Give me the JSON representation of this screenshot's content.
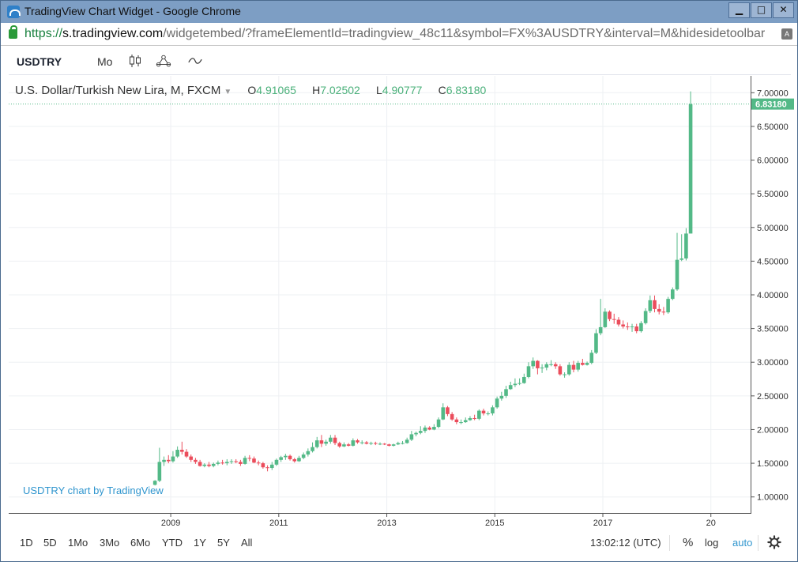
{
  "window": {
    "title": "TradingView Chart Widget - Google Chrome",
    "buttons": {
      "minimize": "▁",
      "maximize": "□",
      "close": "✕"
    }
  },
  "address": {
    "scheme": "https://",
    "host": "s.tradingview.com",
    "path": "/widgetembed/?frameElementId=tradingview_48c11&symbol=FX%3AUSDTRY&interval=M&hidesidetoolbar"
  },
  "toolbar": {
    "symbol": "USDTRY",
    "interval": "Mo"
  },
  "legend": {
    "name": "U.S. Dollar/Turkish New Lira, M, FXCM",
    "o_label": "O",
    "o": "4.91065",
    "h_label": "H",
    "h": "7.02502",
    "l_label": "L",
    "l": "4.90777",
    "c_label": "C",
    "c": "6.83180"
  },
  "watermark": "USDTRY chart by TradingView",
  "bottom": {
    "ranges": [
      "1D",
      "5D",
      "1Mo",
      "3Mo",
      "6Mo",
      "YTD",
      "1Y",
      "5Y",
      "All"
    ],
    "clock": "13:02:12 (UTC)",
    "percent": "%",
    "log": "log",
    "auto": "auto"
  },
  "colors": {
    "up": "#53b987",
    "down": "#eb4d5c",
    "accent": "#2f95ce",
    "last_price_bg": "#53b987"
  },
  "chart_data": {
    "type": "candlestick",
    "y_ticks": [
      "1.00000",
      "1.50000",
      "2.00000",
      "2.50000",
      "3.00000",
      "3.50000",
      "4.00000",
      "4.50000",
      "5.00000",
      "5.50000",
      "6.00000",
      "6.50000",
      "7.00000"
    ],
    "x_ticks": [
      "2009",
      "2011",
      "2013",
      "2015",
      "2017",
      "20"
    ],
    "last_price": "6.83180",
    "ylim": [
      0.75,
      7.25
    ],
    "x_range": [
      "2006-01",
      "2019-10"
    ],
    "x": [
      "2008-09",
      "2008-10",
      "2008-11",
      "2008-12",
      "2009-01",
      "2009-02",
      "2009-03",
      "2009-04",
      "2009-05",
      "2009-06",
      "2009-07",
      "2009-08",
      "2009-09",
      "2009-10",
      "2009-11",
      "2009-12",
      "2010-01",
      "2010-02",
      "2010-03",
      "2010-04",
      "2010-05",
      "2010-06",
      "2010-07",
      "2010-08",
      "2010-09",
      "2010-10",
      "2010-11",
      "2010-12",
      "2011-01",
      "2011-02",
      "2011-03",
      "2011-04",
      "2011-05",
      "2011-06",
      "2011-07",
      "2011-08",
      "2011-09",
      "2011-10",
      "2011-11",
      "2011-12",
      "2012-01",
      "2012-02",
      "2012-03",
      "2012-04",
      "2012-05",
      "2012-06",
      "2012-07",
      "2012-08",
      "2012-09",
      "2012-10",
      "2012-11",
      "2012-12",
      "2013-01",
      "2013-02",
      "2013-03",
      "2013-04",
      "2013-05",
      "2013-06",
      "2013-07",
      "2013-08",
      "2013-09",
      "2013-10",
      "2013-11",
      "2013-12",
      "2014-01",
      "2014-02",
      "2014-03",
      "2014-04",
      "2014-05",
      "2014-06",
      "2014-07",
      "2014-08",
      "2014-09",
      "2014-10",
      "2014-11",
      "2014-12",
      "2015-01",
      "2015-02",
      "2015-03",
      "2015-04",
      "2015-05",
      "2015-06",
      "2015-07",
      "2015-08",
      "2015-09",
      "2015-10",
      "2015-11",
      "2015-12",
      "2016-01",
      "2016-02",
      "2016-03",
      "2016-04",
      "2016-05",
      "2016-06",
      "2016-07",
      "2016-08",
      "2016-09",
      "2016-10",
      "2016-11",
      "2016-12",
      "2017-01",
      "2017-02",
      "2017-03",
      "2017-04",
      "2017-05",
      "2017-06",
      "2017-07",
      "2017-08",
      "2017-09",
      "2017-10",
      "2017-11",
      "2017-12",
      "2018-01",
      "2018-02",
      "2018-03",
      "2018-04",
      "2018-05",
      "2018-06",
      "2018-07",
      "2018-08"
    ],
    "open": [
      1.18,
      1.24,
      1.52,
      1.55,
      1.53,
      1.6,
      1.7,
      1.67,
      1.6,
      1.55,
      1.52,
      1.46,
      1.48,
      1.46,
      1.49,
      1.51,
      1.5,
      1.52,
      1.53,
      1.52,
      1.49,
      1.58,
      1.57,
      1.51,
      1.5,
      1.44,
      1.43,
      1.48,
      1.55,
      1.59,
      1.61,
      1.56,
      1.53,
      1.58,
      1.63,
      1.68,
      1.74,
      1.84,
      1.79,
      1.82,
      1.88,
      1.8,
      1.75,
      1.78,
      1.76,
      1.84,
      1.81,
      1.81,
      1.79,
      1.8,
      1.79,
      1.79,
      1.78,
      1.76,
      1.78,
      1.8,
      1.8,
      1.85,
      1.93,
      1.95,
      1.98,
      2.03,
      2.0,
      2.04,
      2.15,
      2.33,
      2.23,
      2.15,
      2.11,
      2.11,
      2.14,
      2.17,
      2.16,
      2.28,
      2.24,
      2.24,
      2.33,
      2.46,
      2.5,
      2.6,
      2.66,
      2.68,
      2.69,
      2.78,
      2.94,
      3.02,
      2.91,
      2.92,
      2.97,
      2.97,
      2.94,
      2.82,
      2.82,
      2.96,
      2.89,
      2.99,
      2.96,
      2.99,
      3.14,
      3.43,
      3.52,
      3.75,
      3.64,
      3.63,
      3.56,
      3.53,
      3.52,
      3.53,
      3.46,
      3.58,
      3.76,
      3.92,
      3.79,
      3.75,
      3.74,
      3.94,
      4.08,
      4.52,
      4.54,
      4.91
    ],
    "high": [
      1.25,
      1.73,
      1.6,
      1.62,
      1.68,
      1.75,
      1.82,
      1.71,
      1.63,
      1.58,
      1.55,
      1.5,
      1.52,
      1.51,
      1.54,
      1.55,
      1.56,
      1.56,
      1.56,
      1.55,
      1.61,
      1.62,
      1.6,
      1.54,
      1.52,
      1.47,
      1.52,
      1.57,
      1.61,
      1.64,
      1.63,
      1.58,
      1.61,
      1.66,
      1.72,
      1.81,
      1.89,
      1.92,
      1.85,
      1.92,
      1.92,
      1.82,
      1.81,
      1.8,
      1.87,
      1.86,
      1.84,
      1.83,
      1.82,
      1.82,
      1.81,
      1.8,
      1.79,
      1.79,
      1.82,
      1.83,
      1.88,
      1.98,
      1.97,
      2.05,
      2.06,
      2.05,
      2.08,
      2.18,
      2.39,
      2.35,
      2.26,
      2.18,
      2.15,
      2.18,
      2.2,
      2.22,
      2.3,
      2.31,
      2.27,
      2.36,
      2.49,
      2.56,
      2.65,
      2.71,
      2.76,
      2.76,
      2.83,
      3.0,
      3.07,
      3.03,
      2.97,
      3.0,
      3.03,
      3.0,
      2.97,
      2.85,
      3.0,
      3.02,
      3.02,
      3.05,
      3.01,
      3.18,
      3.49,
      3.94,
      3.8,
      3.77,
      3.72,
      3.67,
      3.62,
      3.59,
      3.57,
      3.57,
      3.61,
      3.8,
      3.99,
      3.99,
      3.86,
      3.82,
      3.97,
      4.11,
      4.92,
      4.9,
      4.99,
      7.02
    ],
    "low": [
      1.17,
      1.22,
      1.46,
      1.5,
      1.51,
      1.58,
      1.63,
      1.58,
      1.52,
      1.49,
      1.45,
      1.44,
      1.44,
      1.44,
      1.47,
      1.48,
      1.47,
      1.49,
      1.5,
      1.46,
      1.48,
      1.53,
      1.5,
      1.47,
      1.42,
      1.38,
      1.4,
      1.46,
      1.52,
      1.55,
      1.54,
      1.51,
      1.52,
      1.56,
      1.6,
      1.66,
      1.72,
      1.74,
      1.76,
      1.79,
      1.77,
      1.73,
      1.74,
      1.75,
      1.75,
      1.79,
      1.78,
      1.78,
      1.77,
      1.77,
      1.77,
      1.77,
      1.75,
      1.75,
      1.77,
      1.78,
      1.79,
      1.83,
      1.9,
      1.93,
      1.95,
      1.99,
      1.99,
      2.02,
      2.14,
      2.2,
      2.13,
      2.08,
      2.08,
      2.1,
      2.13,
      2.14,
      2.14,
      2.21,
      2.21,
      2.21,
      2.31,
      2.43,
      2.47,
      2.59,
      2.63,
      2.66,
      2.68,
      2.76,
      2.9,
      2.82,
      2.84,
      2.88,
      2.94,
      2.9,
      2.8,
      2.77,
      2.8,
      2.85,
      2.86,
      2.95,
      2.95,
      2.97,
      3.12,
      3.4,
      3.51,
      3.61,
      3.57,
      3.53,
      3.5,
      3.48,
      3.45,
      3.43,
      3.44,
      3.56,
      3.73,
      3.74,
      3.71,
      3.7,
      3.72,
      3.92,
      4.06,
      4.5,
      4.51,
      4.91
    ],
    "close": [
      1.24,
      1.52,
      1.55,
      1.53,
      1.6,
      1.7,
      1.67,
      1.6,
      1.55,
      1.52,
      1.46,
      1.48,
      1.46,
      1.49,
      1.51,
      1.5,
      1.52,
      1.53,
      1.52,
      1.49,
      1.58,
      1.57,
      1.51,
      1.5,
      1.44,
      1.43,
      1.48,
      1.55,
      1.59,
      1.61,
      1.56,
      1.53,
      1.58,
      1.63,
      1.68,
      1.74,
      1.84,
      1.79,
      1.82,
      1.88,
      1.8,
      1.75,
      1.78,
      1.76,
      1.84,
      1.81,
      1.81,
      1.79,
      1.8,
      1.79,
      1.79,
      1.78,
      1.76,
      1.78,
      1.8,
      1.8,
      1.85,
      1.93,
      1.95,
      1.98,
      2.03,
      2.0,
      2.04,
      2.15,
      2.33,
      2.23,
      2.15,
      2.11,
      2.11,
      2.14,
      2.17,
      2.16,
      2.28,
      2.24,
      2.24,
      2.33,
      2.46,
      2.5,
      2.6,
      2.66,
      2.68,
      2.69,
      2.78,
      2.94,
      3.02,
      2.91,
      2.92,
      2.97,
      2.97,
      2.94,
      2.82,
      2.82,
      2.96,
      2.89,
      2.99,
      2.96,
      2.99,
      3.14,
      3.43,
      3.52,
      3.75,
      3.64,
      3.63,
      3.56,
      3.53,
      3.52,
      3.53,
      3.46,
      3.58,
      3.76,
      3.92,
      3.79,
      3.75,
      3.74,
      3.94,
      4.08,
      4.52,
      4.54,
      4.91,
      6.83
    ]
  }
}
